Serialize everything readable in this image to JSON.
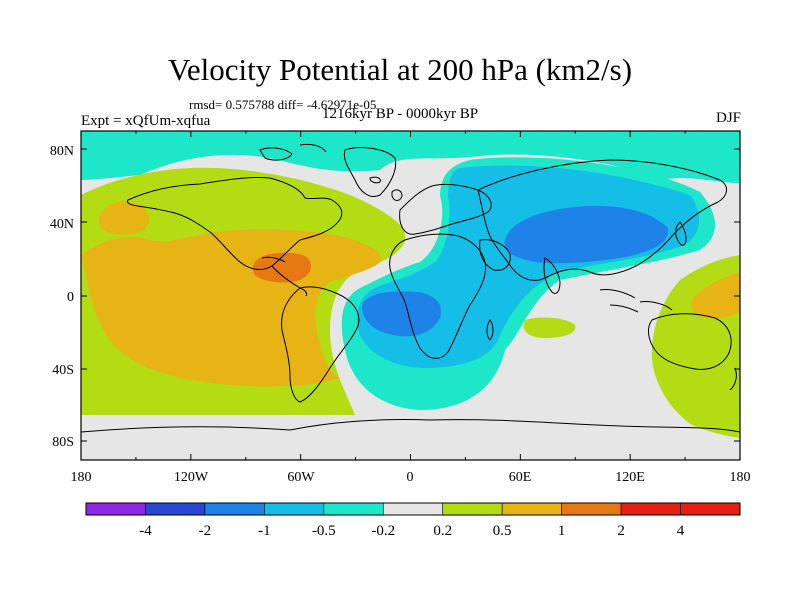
{
  "header": {
    "title": "Velocity Potential at 200 hPa (km2/s)",
    "stats": "rmsd= 0.575788 diff= -4.62971e-05",
    "period": "1216kyr BP - 0000kyr BP",
    "experiment": "Expt = xQfUm-xqfua",
    "season": "DJF"
  },
  "axes": {
    "lat_labels": [
      "80N",
      "40N",
      "0",
      "40S",
      "80S"
    ],
    "lon_labels": [
      "180",
      "120W",
      "60W",
      "0",
      "60E",
      "120E",
      "180"
    ]
  },
  "colorbar": {
    "labels": [
      "-4",
      "-2",
      "-1",
      "-0.5",
      "-0.2",
      "0.2",
      "0.5",
      "1",
      "2",
      "4"
    ],
    "colors": [
      "#8c28e6",
      "#2846d2",
      "#1e82e6",
      "#14bee6",
      "#1ee6c8",
      "#e6e6e6",
      "#b4dc14",
      "#e6b414",
      "#e67814",
      "#e61e14"
    ]
  },
  "field": {
    "color_gray": "#e6e6e6",
    "color_cyan": "#1ee6c8",
    "color_lightblue": "#14bee6",
    "color_blue": "#1e82e6",
    "color_yellowgreen": "#b4dc14",
    "color_orange": "#e6b414",
    "color_darkorange": "#e67814"
  }
}
